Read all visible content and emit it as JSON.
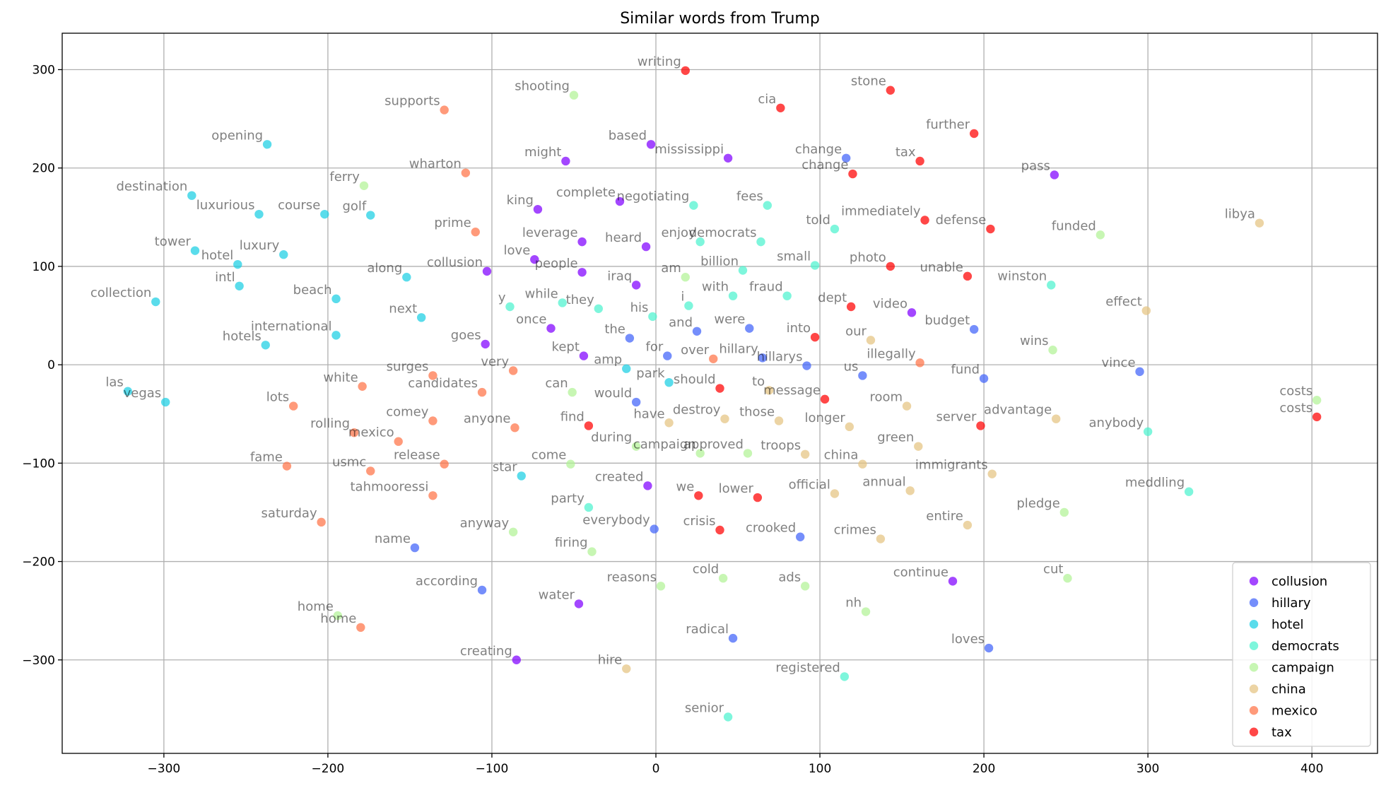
{
  "chart_data": {
    "type": "scatter",
    "title": "Similar words from Trump",
    "xlabel": "",
    "ylabel": "",
    "xlim": [
      -362,
      440
    ],
    "ylim": [
      -395,
      337
    ],
    "x_ticks": [
      -300,
      -200,
      -100,
      0,
      100,
      200,
      300,
      400
    ],
    "y_ticks": [
      -300,
      -200,
      -100,
      0,
      100,
      200,
      300
    ],
    "x_tick_labels": [
      "−300",
      "−200",
      "−100",
      "0",
      "100",
      "200",
      "300",
      "400"
    ],
    "y_tick_labels": [
      "−300",
      "−200",
      "−100",
      "0",
      "100",
      "200",
      "300"
    ],
    "grid": true,
    "legend_position": "lower right",
    "series": [
      {
        "name": "collusion",
        "color": "#8000ff",
        "points": [
          {
            "x": -55,
            "y": 207,
            "label": "might"
          },
          {
            "x": -3,
            "y": 224,
            "label": "based"
          },
          {
            "x": 44,
            "y": 210,
            "label": "mississippi"
          },
          {
            "x": -72,
            "y": 158,
            "label": "king"
          },
          {
            "x": -22,
            "y": 166,
            "label": "complete"
          },
          {
            "x": -45,
            "y": 125,
            "label": "leverage"
          },
          {
            "x": -6,
            "y": 120,
            "label": "heard"
          },
          {
            "x": -74,
            "y": 107,
            "label": "love"
          },
          {
            "x": -45,
            "y": 94,
            "label": "people"
          },
          {
            "x": -103,
            "y": 95,
            "label": "collusion"
          },
          {
            "x": -12,
            "y": 81,
            "label": "iraq"
          },
          {
            "x": -64,
            "y": 37,
            "label": "once"
          },
          {
            "x": -104,
            "y": 21,
            "label": "goes"
          },
          {
            "x": -44,
            "y": 9,
            "label": "kept"
          },
          {
            "x": 156,
            "y": 53,
            "label": "video"
          },
          {
            "x": 243,
            "y": 193,
            "label": "pass"
          },
          {
            "x": -5,
            "y": -123,
            "label": "created"
          },
          {
            "x": 181,
            "y": -220,
            "label": "continue"
          },
          {
            "x": -47,
            "y": -243,
            "label": "water"
          },
          {
            "x": -85,
            "y": -300,
            "label": "creating"
          }
        ]
      },
      {
        "name": "hillary",
        "color": "#4062fa",
        "points": [
          {
            "x": 116,
            "y": 210,
            "label": "change"
          },
          {
            "x": -16,
            "y": 27,
            "label": "the"
          },
          {
            "x": 7,
            "y": 9,
            "label": "for"
          },
          {
            "x": 25,
            "y": 34,
            "label": "and"
          },
          {
            "x": 57,
            "y": 37,
            "label": "were"
          },
          {
            "x": 65,
            "y": 7,
            "label": "hillary"
          },
          {
            "x": 92,
            "y": -1,
            "label": "hillarys"
          },
          {
            "x": 126,
            "y": -11,
            "label": "us"
          },
          {
            "x": 194,
            "y": 36,
            "label": "budget"
          },
          {
            "x": 200,
            "y": -14,
            "label": "fund"
          },
          {
            "x": 295,
            "y": -7,
            "label": "vince"
          },
          {
            "x": -12,
            "y": -38,
            "label": "would"
          },
          {
            "x": -1,
            "y": -167,
            "label": "everybody"
          },
          {
            "x": 88,
            "y": -175,
            "label": "crooked"
          },
          {
            "x": -147,
            "y": -186,
            "label": "name"
          },
          {
            "x": -106,
            "y": -229,
            "label": "according"
          },
          {
            "x": 47,
            "y": -278,
            "label": "radical"
          },
          {
            "x": 203,
            "y": -288,
            "label": "loves"
          }
        ]
      },
      {
        "name": "hotel",
        "color": "#1acee3",
        "points": [
          {
            "x": -237,
            "y": 224,
            "label": "opening"
          },
          {
            "x": -283,
            "y": 172,
            "label": "destination"
          },
          {
            "x": -242,
            "y": 153,
            "label": "luxurious"
          },
          {
            "x": -202,
            "y": 153,
            "label": "course"
          },
          {
            "x": -174,
            "y": 152,
            "label": "golf"
          },
          {
            "x": -281,
            "y": 116,
            "label": "tower"
          },
          {
            "x": -227,
            "y": 112,
            "label": "luxury"
          },
          {
            "x": -255,
            "y": 102,
            "label": "hotel"
          },
          {
            "x": -254,
            "y": 80,
            "label": "intl"
          },
          {
            "x": -152,
            "y": 89,
            "label": "along"
          },
          {
            "x": -305,
            "y": 64,
            "label": "collection"
          },
          {
            "x": -195,
            "y": 67,
            "label": "beach"
          },
          {
            "x": -143,
            "y": 48,
            "label": "next"
          },
          {
            "x": -195,
            "y": 30,
            "label": "international"
          },
          {
            "x": -238,
            "y": 20,
            "label": "hotels"
          },
          {
            "x": -18,
            "y": -4,
            "label": "amp"
          },
          {
            "x": 8,
            "y": -18,
            "label": "park"
          },
          {
            "x": -322,
            "y": -27,
            "label": "las"
          },
          {
            "x": -299,
            "y": -38,
            "label": "vegas"
          },
          {
            "x": -82,
            "y": -113,
            "label": "star"
          }
        ]
      },
      {
        "name": "democrats",
        "color": "#4cf2ce",
        "points": [
          {
            "x": 23,
            "y": 162,
            "label": "negotiating"
          },
          {
            "x": 68,
            "y": 162,
            "label": "fees"
          },
          {
            "x": 27,
            "y": 125,
            "label": "enjoy"
          },
          {
            "x": 64,
            "y": 125,
            "label": "democrats"
          },
          {
            "x": 109,
            "y": 138,
            "label": "told"
          },
          {
            "x": 53,
            "y": 96,
            "label": "billion"
          },
          {
            "x": 97,
            "y": 101,
            "label": "small"
          },
          {
            "x": 47,
            "y": 70,
            "label": "with"
          },
          {
            "x": 80,
            "y": 70,
            "label": "fraud"
          },
          {
            "x": 20,
            "y": 60,
            "label": "i"
          },
          {
            "x": -89,
            "y": 59,
            "label": "y"
          },
          {
            "x": -57,
            "y": 63,
            "label": "while"
          },
          {
            "x": -35,
            "y": 57,
            "label": "they"
          },
          {
            "x": -2,
            "y": 49,
            "label": "his"
          },
          {
            "x": 241,
            "y": 81,
            "label": "winston"
          },
          {
            "x": 300,
            "y": -68,
            "label": "anybody"
          },
          {
            "x": -41,
            "y": -145,
            "label": "party"
          },
          {
            "x": 325,
            "y": -129,
            "label": "meddling"
          },
          {
            "x": 115,
            "y": -317,
            "label": "registered"
          },
          {
            "x": 44,
            "y": -358,
            "label": "senior"
          }
        ]
      },
      {
        "name": "campaign",
        "color": "#b2f396",
        "points": [
          {
            "x": -50,
            "y": 274,
            "label": "shooting"
          },
          {
            "x": -178,
            "y": 182,
            "label": "ferry"
          },
          {
            "x": 18,
            "y": 89,
            "label": "am"
          },
          {
            "x": 271,
            "y": 132,
            "label": "funded"
          },
          {
            "x": -51,
            "y": -28,
            "label": "can"
          },
          {
            "x": 242,
            "y": 15,
            "label": "wins"
          },
          {
            "x": 403,
            "y": -36,
            "label": "costs"
          },
          {
            "x": -12,
            "y": -83,
            "label": "during"
          },
          {
            "x": 27,
            "y": -90,
            "label": "campaign"
          },
          {
            "x": 56,
            "y": -90,
            "label": "approved"
          },
          {
            "x": -52,
            "y": -101,
            "label": "come"
          },
          {
            "x": -87,
            "y": -170,
            "label": "anyway"
          },
          {
            "x": 249,
            "y": -150,
            "label": "pledge"
          },
          {
            "x": -39,
            "y": -190,
            "label": "firing"
          },
          {
            "x": 41,
            "y": -217,
            "label": "cold"
          },
          {
            "x": 251,
            "y": -217,
            "label": "cut"
          },
          {
            "x": 3,
            "y": -225,
            "label": "reasons"
          },
          {
            "x": 91,
            "y": -225,
            "label": "ads"
          },
          {
            "x": 128,
            "y": -251,
            "label": "nh"
          },
          {
            "x": -194,
            "y": -255,
            "label": "home"
          }
        ]
      },
      {
        "name": "china",
        "color": "#e4c381",
        "points": [
          {
            "x": 368,
            "y": 144,
            "label": "libya"
          },
          {
            "x": 299,
            "y": 55,
            "label": "effect"
          },
          {
            "x": 131,
            "y": 25,
            "label": "our"
          },
          {
            "x": 69,
            "y": -26,
            "label": "to"
          },
          {
            "x": 153,
            "y": -42,
            "label": "room"
          },
          {
            "x": 244,
            "y": -55,
            "label": "advantage"
          },
          {
            "x": 42,
            "y": -55,
            "label": "destroy"
          },
          {
            "x": 75,
            "y": -57,
            "label": "those"
          },
          {
            "x": 8,
            "y": -59,
            "label": "have"
          },
          {
            "x": 118,
            "y": -63,
            "label": "longer"
          },
          {
            "x": 160,
            "y": -83,
            "label": "green"
          },
          {
            "x": 91,
            "y": -91,
            "label": "troops"
          },
          {
            "x": 126,
            "y": -101,
            "label": "china"
          },
          {
            "x": 205,
            "y": -111,
            "label": "immigrants"
          },
          {
            "x": 155,
            "y": -128,
            "label": "annual"
          },
          {
            "x": 109,
            "y": -131,
            "label": "official"
          },
          {
            "x": 190,
            "y": -163,
            "label": "entire"
          },
          {
            "x": 137,
            "y": -177,
            "label": "crimes"
          },
          {
            "x": -18,
            "y": -309,
            "label": "hire"
          }
        ]
      },
      {
        "name": "mexico",
        "color": "#ff7347",
        "points": [
          {
            "x": -129,
            "y": 259,
            "label": "supports"
          },
          {
            "x": -116,
            "y": 195,
            "label": "wharton"
          },
          {
            "x": -110,
            "y": 135,
            "label": "prime"
          },
          {
            "x": 35,
            "y": 6,
            "label": "over"
          },
          {
            "x": 161,
            "y": 2,
            "label": "illegally"
          },
          {
            "x": -87,
            "y": -6,
            "label": "very"
          },
          {
            "x": -136,
            "y": -11,
            "label": "surges"
          },
          {
            "x": -179,
            "y": -22,
            "label": "white"
          },
          {
            "x": -106,
            "y": -28,
            "label": "candidates"
          },
          {
            "x": -221,
            "y": -42,
            "label": "lots"
          },
          {
            "x": -136,
            "y": -57,
            "label": "comey"
          },
          {
            "x": -86,
            "y": -64,
            "label": "anyone"
          },
          {
            "x": -184,
            "y": -69,
            "label": "rolling"
          },
          {
            "x": -157,
            "y": -78,
            "label": "mexico"
          },
          {
            "x": -129,
            "y": -101,
            "label": "release"
          },
          {
            "x": -225,
            "y": -103,
            "label": "fame"
          },
          {
            "x": -174,
            "y": -108,
            "label": "usmc"
          },
          {
            "x": -136,
            "y": -133,
            "label": "tahmooressi"
          },
          {
            "x": -204,
            "y": -160,
            "label": "saturday"
          },
          {
            "x": -180,
            "y": -267,
            "label": "home"
          }
        ]
      },
      {
        "name": "tax",
        "color": "#ff0000",
        "points": [
          {
            "x": 18,
            "y": 299,
            "label": "writing"
          },
          {
            "x": 143,
            "y": 279,
            "label": "stone"
          },
          {
            "x": 76,
            "y": 261,
            "label": "cia"
          },
          {
            "x": 194,
            "y": 235,
            "label": "further"
          },
          {
            "x": 161,
            "y": 207,
            "label": "tax"
          },
          {
            "x": 120,
            "y": 194,
            "label": "change"
          },
          {
            "x": 164,
            "y": 147,
            "label": "immediately"
          },
          {
            "x": 204,
            "y": 138,
            "label": "defense"
          },
          {
            "x": 143,
            "y": 100,
            "label": "photo"
          },
          {
            "x": 190,
            "y": 90,
            "label": "unable"
          },
          {
            "x": 119,
            "y": 59,
            "label": "dept"
          },
          {
            "x": 97,
            "y": 28,
            "label": "into"
          },
          {
            "x": 39,
            "y": -24,
            "label": "should"
          },
          {
            "x": 103,
            "y": -35,
            "label": "message"
          },
          {
            "x": -41,
            "y": -62,
            "label": "find"
          },
          {
            "x": 198,
            "y": -62,
            "label": "server"
          },
          {
            "x": 403,
            "y": -53,
            "label": "costs"
          },
          {
            "x": 26,
            "y": -133,
            "label": "we"
          },
          {
            "x": 62,
            "y": -135,
            "label": "lower"
          },
          {
            "x": 39,
            "y": -168,
            "label": "crisis"
          }
        ]
      }
    ]
  }
}
